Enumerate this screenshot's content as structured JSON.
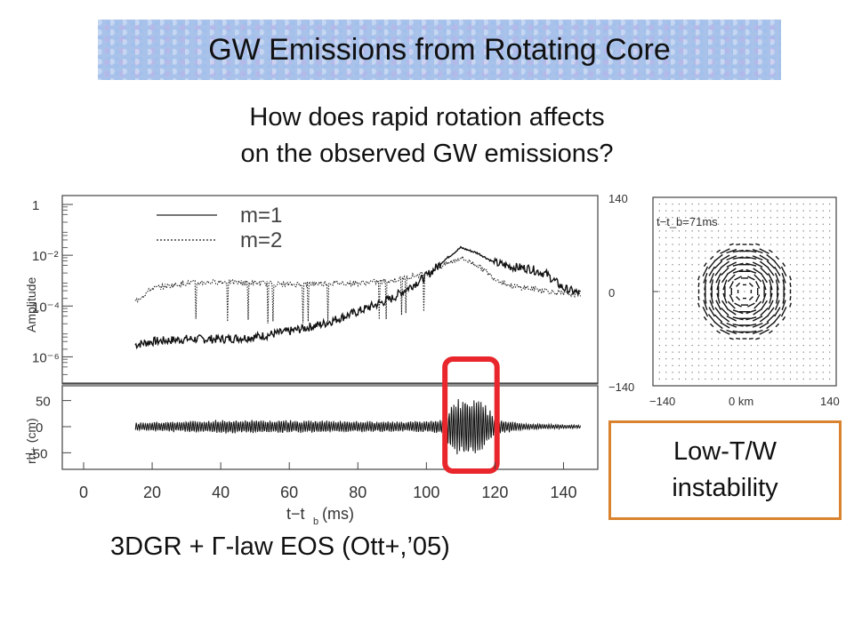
{
  "slide": {
    "title": "GW Emissions from Rotating Core",
    "question_line1": "How does rapid rotation affects",
    "question_line2": "on the observed GW emissions?",
    "caption": "3DGR + Γ-law EOS (Ott+,’05)",
    "box_line1": "Low-T/W",
    "box_line2": "instability",
    "box_border_color": "#d9832e",
    "highlight_color": "#e8262b"
  },
  "chart_data": [
    {
      "type": "line",
      "title": "",
      "ylabel": "Amplitude",
      "xlabel": "t−t_b (ms)",
      "yscale": "log",
      "ylim": [
        1e-07,
        1
      ],
      "xlim": [
        0,
        150
      ],
      "ytick_labels": [
        "1",
        "10⁻²",
        "10⁻⁴",
        "10⁻⁶"
      ],
      "legend": {
        "placement": "top-left",
        "entries": [
          "m=1",
          "m=2"
        ]
      },
      "series": [
        {
          "name": "m=1",
          "style": "solid",
          "x": [
            15,
            20,
            30,
            40,
            50,
            60,
            70,
            80,
            90,
            100,
            105,
            110,
            115,
            120,
            125,
            130,
            135,
            140,
            145
          ],
          "y": [
            3e-06,
            4e-06,
            5e-06,
            5e-06,
            6e-06,
            1e-05,
            2e-05,
            6e-05,
            0.0002,
            0.0015,
            0.006,
            0.02,
            0.012,
            0.005,
            0.0035,
            0.003,
            0.0018,
            0.0005,
            0.0003
          ]
        },
        {
          "name": "m=2",
          "style": "dotted",
          "x": [
            15,
            20,
            30,
            40,
            50,
            60,
            70,
            80,
            90,
            100,
            105,
            110,
            115,
            120,
            125,
            130,
            135,
            140,
            145
          ],
          "y": [
            0.00015,
            0.0005,
            0.0008,
            0.0009,
            0.0008,
            0.0007,
            0.0008,
            0.0008,
            0.001,
            0.002,
            0.004,
            0.008,
            0.004,
            0.0012,
            0.0006,
            0.0005,
            0.0004,
            0.0003,
            0.0003
          ]
        }
      ]
    },
    {
      "type": "line",
      "title": "",
      "ylabel": "rh₊ (cm)",
      "xlabel": "t−t_b (ms)",
      "xlim": [
        0,
        150
      ],
      "ylim": [
        -80,
        80
      ],
      "xticks": [
        0,
        20,
        40,
        60,
        80,
        100,
        120,
        140
      ],
      "xtick_labels": [
        "0",
        "20",
        "40",
        "60",
        "80",
        "100",
        "120",
        "140"
      ],
      "yticks": [
        50,
        0,
        -50
      ],
      "ytick_labels": [
        "50",
        "0",
        "−50"
      ],
      "highlight_range_ms": [
        108,
        118
      ],
      "series": [
        {
          "name": "",
          "style": "oscillation",
          "x": [
            15,
            40,
            70,
            95,
            105,
            108,
            111,
            114,
            117,
            120,
            130,
            140,
            145
          ],
          "envelope": [
            8,
            14,
            12,
            10,
            15,
            55,
            62,
            60,
            50,
            15,
            6,
            4,
            3
          ]
        }
      ]
    },
    {
      "type": "vector_field",
      "title": "",
      "annotation": "t−t_b=71ms",
      "xlim": [
        -140,
        140
      ],
      "ylim": [
        -140,
        140
      ],
      "xtick_labels": [
        "−140",
        "0 km",
        "140"
      ],
      "ytick_labels": [
        "140",
        "0",
        "−140"
      ],
      "vortex_center_km": [
        0,
        0
      ],
      "vortex_radius_km": 75
    }
  ]
}
